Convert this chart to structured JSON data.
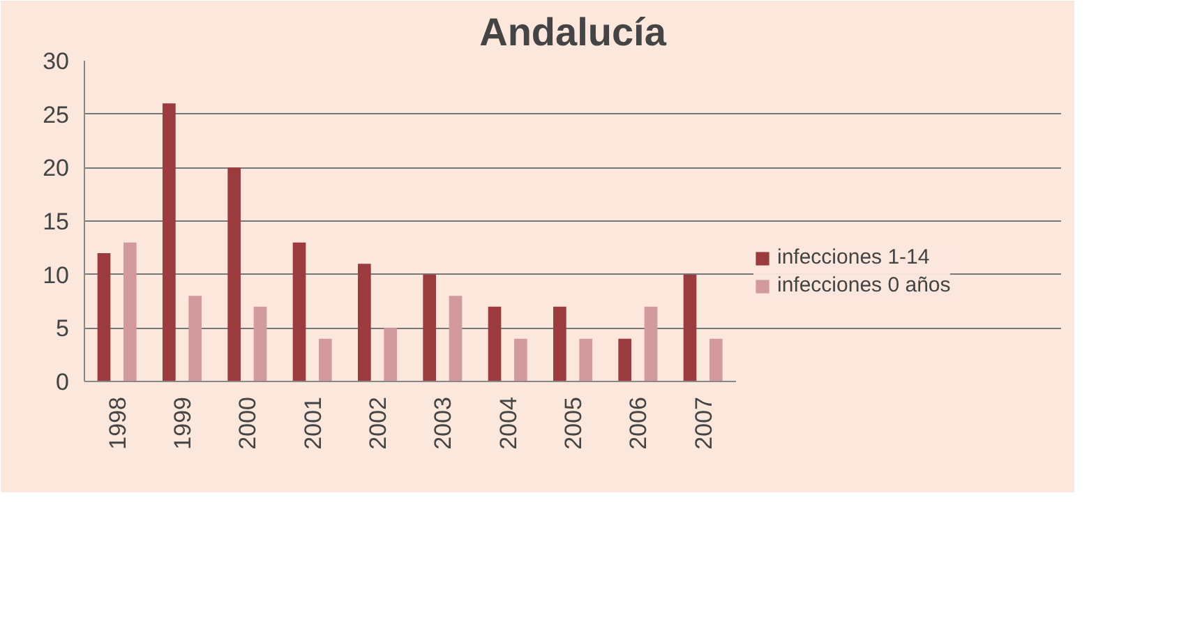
{
  "chart_data": {
    "type": "bar",
    "title": "Andalucía",
    "categories": [
      "1998",
      "1999",
      "2000",
      "2001",
      "2002",
      "2003",
      "2004",
      "2005",
      "2006",
      "2007"
    ],
    "series": [
      {
        "name": "infecciones 1-14",
        "color": "#9b3b3e",
        "values": [
          12,
          26,
          20,
          13,
          11,
          10,
          7,
          7,
          4,
          10
        ]
      },
      {
        "name": "infecciones 0 años",
        "color": "#d29a9c",
        "values": [
          13,
          8,
          7,
          4,
          5,
          8,
          4,
          4,
          7,
          4
        ]
      }
    ],
    "ylim": [
      0,
      30
    ],
    "yticks": [
      0,
      5,
      10,
      15,
      20,
      25,
      30
    ],
    "grid": "y",
    "legend": "right"
  }
}
